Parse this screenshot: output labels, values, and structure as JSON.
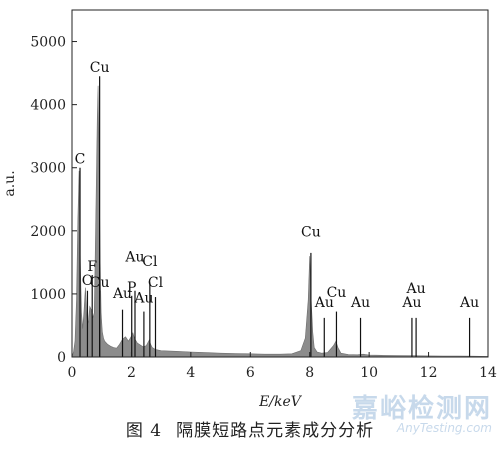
{
  "chart_data": {
    "type": "line",
    "title": "",
    "xlabel": "E/keV",
    "ylabel": "a.u.",
    "xlim": [
      0,
      14
    ],
    "ylim": [
      0,
      5500
    ],
    "xticks": [
      0,
      2,
      4,
      6,
      8,
      10,
      12,
      14
    ],
    "yticks": [
      0,
      1000,
      2000,
      3000,
      4000,
      5000
    ],
    "grid": false,
    "fill_color": "#8c8c8c",
    "spectrum": {
      "x": [
        0.0,
        0.05,
        0.1,
        0.15,
        0.2,
        0.24,
        0.28,
        0.32,
        0.36,
        0.4,
        0.45,
        0.5,
        0.55,
        0.6,
        0.65,
        0.7,
        0.75,
        0.8,
        0.85,
        0.88,
        0.92,
        0.95,
        0.98,
        1.02,
        1.06,
        1.1,
        1.2,
        1.3,
        1.4,
        1.5,
        1.6,
        1.7,
        1.8,
        1.9,
        2.0,
        2.05,
        2.1,
        2.15,
        2.2,
        2.3,
        2.4,
        2.5,
        2.6,
        2.65,
        2.7,
        2.8,
        3.0,
        3.5,
        4.0,
        4.5,
        5.0,
        5.5,
        6.0,
        6.5,
        7.0,
        7.4,
        7.7,
        7.85,
        7.95,
        8.0,
        8.05,
        8.1,
        8.15,
        8.25,
        8.4,
        8.6,
        8.8,
        8.88,
        8.95,
        9.05,
        9.3,
        9.6,
        9.8,
        10.0,
        10.5,
        11.0,
        11.5,
        12.0,
        12.5,
        13.0,
        13.5,
        14.0
      ],
      "y": [
        0,
        80,
        250,
        900,
        2200,
        2950,
        1500,
        700,
        450,
        700,
        1100,
        600,
        550,
        800,
        750,
        620,
        700,
        2200,
        3800,
        4300,
        2800,
        1500,
        700,
        400,
        300,
        250,
        200,
        170,
        150,
        140,
        200,
        280,
        320,
        250,
        330,
        380,
        300,
        260,
        220,
        190,
        160,
        180,
        270,
        200,
        150,
        120,
        100,
        90,
        80,
        70,
        60,
        55,
        50,
        45,
        45,
        50,
        100,
        300,
        900,
        1600,
        900,
        400,
        150,
        80,
        60,
        70,
        180,
        250,
        150,
        60,
        40,
        35,
        45,
        30,
        25,
        22,
        20,
        18,
        16,
        14,
        12,
        10
      ]
    },
    "annotations": [
      {
        "label": "C",
        "x": 0.27
      },
      {
        "label": "O",
        "x": 0.52
      },
      {
        "label": "F",
        "x": 0.68
      },
      {
        "label": "Cu",
        "x": 0.93
      },
      {
        "label": "Cu",
        "x": 0.93
      },
      {
        "label": "Au",
        "x": 1.7
      },
      {
        "label": "P",
        "x": 2.01
      },
      {
        "label": "Au",
        "x": 2.12
      },
      {
        "label": "Au",
        "x": 2.42
      },
      {
        "label": "Cl",
        "x": 2.62
      },
      {
        "label": "Cl",
        "x": 2.81
      },
      {
        "label": "Cu",
        "x": 8.04
      },
      {
        "label": "Au",
        "x": 8.49
      },
      {
        "label": "Cu",
        "x": 8.9
      },
      {
        "label": "Au",
        "x": 9.71
      },
      {
        "label": "Au",
        "x": 11.44
      },
      {
        "label": "Au",
        "x": 11.58
      },
      {
        "label": "Au",
        "x": 13.38
      }
    ]
  },
  "caption": {
    "figure_number": "图 4",
    "text": "隔膜短路点元素成分分析"
  },
  "watermark": {
    "text": "嘉峪检测网",
    "subtext": "AnyTesting.com"
  }
}
